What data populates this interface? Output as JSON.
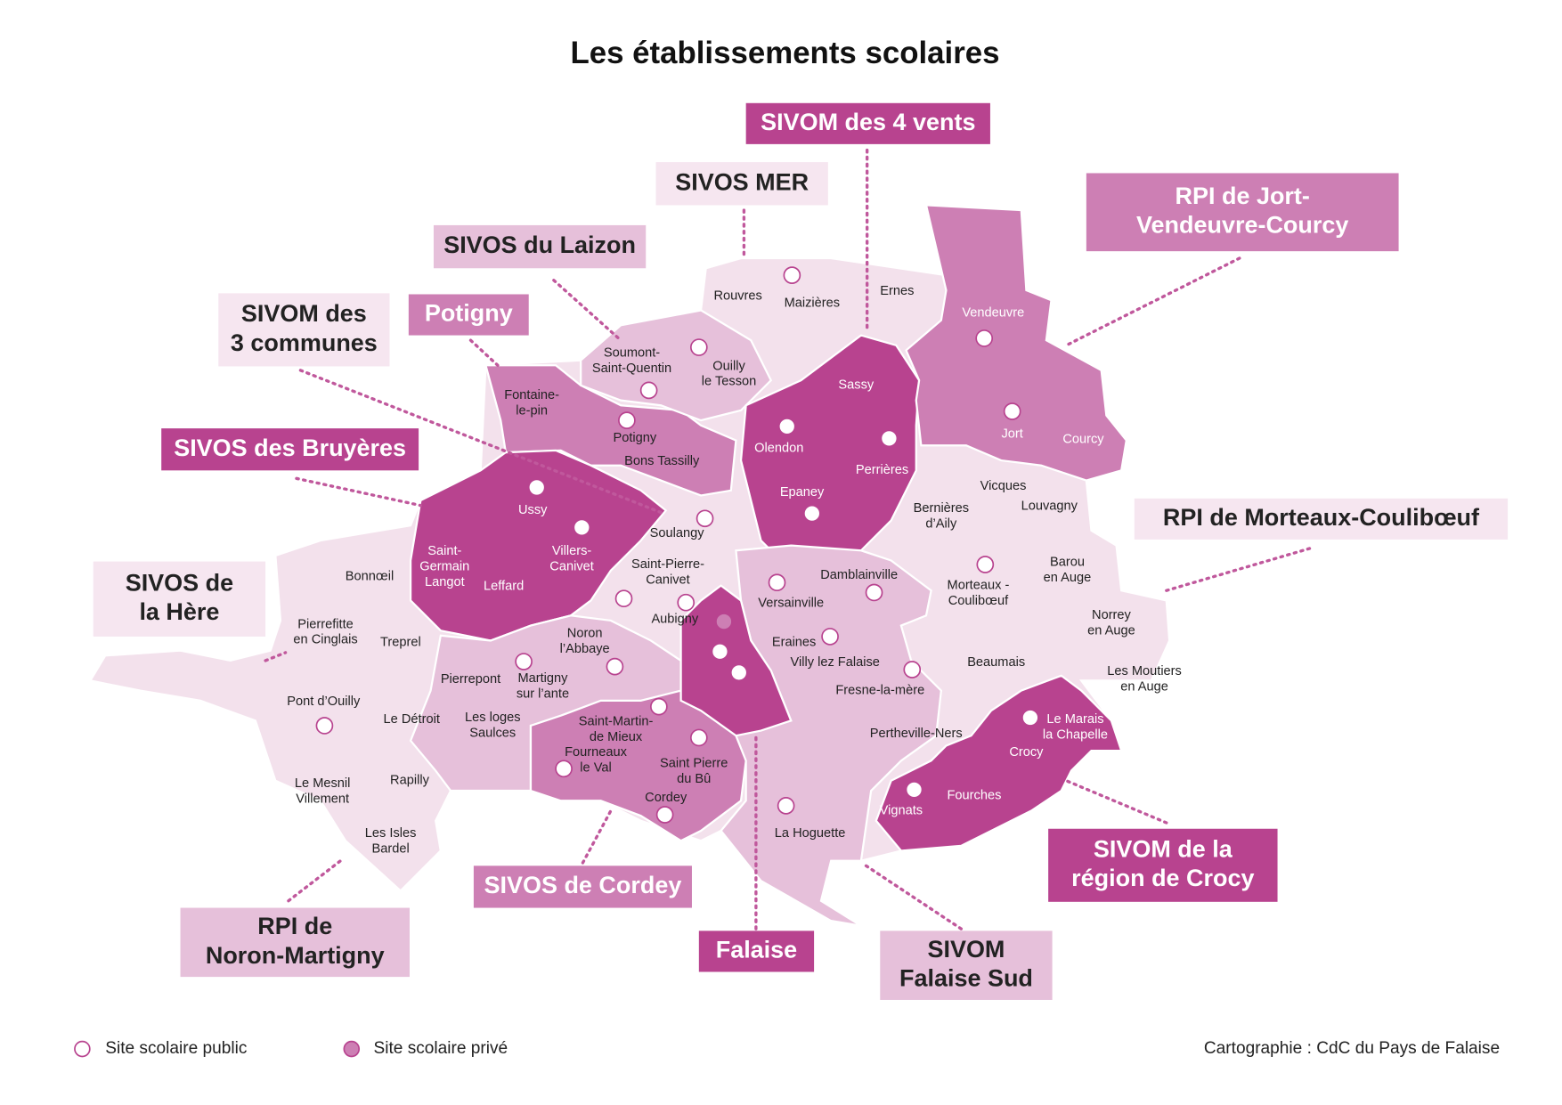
{
  "title": "Les établissements scolaires",
  "groups": [
    {
      "lines": [
        "SIVOM des 4 vents"
      ]
    },
    {
      "lines": [
        "SIVOS MER"
      ]
    },
    {
      "lines": [
        "RPI de Jort-",
        "Vendeuvre-Courcy"
      ]
    },
    {
      "lines": [
        "SIVOS du Laizon"
      ]
    },
    {
      "lines": [
        "SIVOM des",
        "3 communes"
      ]
    },
    {
      "lines": [
        "Potigny"
      ]
    },
    {
      "lines": [
        "SIVOS des Bruyères"
      ]
    },
    {
      "lines": [
        "RPI de Morteaux-Coulibœuf"
      ]
    },
    {
      "lines": [
        "SIVOS de",
        "la Hère"
      ]
    },
    {
      "lines": [
        "SIVOM de la",
        "région de Crocy"
      ]
    },
    {
      "lines": [
        "SIVOS de Cordey"
      ]
    },
    {
      "lines": [
        "RPI de",
        "Noron-Martigny"
      ]
    },
    {
      "lines": [
        "Falaise"
      ]
    },
    {
      "lines": [
        "SIVOM",
        "Falaise Sud"
      ]
    }
  ],
  "communes": [
    {
      "lines": [
        "Rouvres"
      ]
    },
    {
      "lines": [
        "Maizières"
      ]
    },
    {
      "lines": [
        "Ernes"
      ]
    },
    {
      "lines": [
        "Vendeuvre"
      ]
    },
    {
      "lines": [
        "Soumont-",
        "Saint-Quentin"
      ]
    },
    {
      "lines": [
        "Ouilly",
        "le Tesson"
      ]
    },
    {
      "lines": [
        "Fontaine-",
        "le-pin"
      ]
    },
    {
      "lines": [
        "Sassy"
      ]
    },
    {
      "lines": [
        "Potigny"
      ]
    },
    {
      "lines": [
        "Bons Tassilly"
      ]
    },
    {
      "lines": [
        "Olendon"
      ]
    },
    {
      "lines": [
        "Perrières"
      ]
    },
    {
      "lines": [
        "Jort"
      ]
    },
    {
      "lines": [
        "Courcy"
      ]
    },
    {
      "lines": [
        "Ussy"
      ]
    },
    {
      "lines": [
        "Epaney"
      ]
    },
    {
      "lines": [
        "Bernières",
        "d’Aily"
      ]
    },
    {
      "lines": [
        "Vicques"
      ]
    },
    {
      "lines": [
        "Louvagny"
      ]
    },
    {
      "lines": [
        "Soulangy"
      ]
    },
    {
      "lines": [
        "Villers-",
        "Canivet"
      ]
    },
    {
      "lines": [
        "Saint-",
        "Germain",
        "Langot"
      ]
    },
    {
      "lines": [
        "Leffard"
      ]
    },
    {
      "lines": [
        "Saint-Pierre-",
        "Canivet"
      ]
    },
    {
      "lines": [
        "Bonnœil"
      ]
    },
    {
      "lines": [
        "Damblainville"
      ]
    },
    {
      "lines": [
        "Versainville"
      ]
    },
    {
      "lines": [
        "Morteaux -",
        "Coulibœuf"
      ]
    },
    {
      "lines": [
        "Barou",
        "en Auge"
      ]
    },
    {
      "lines": [
        "Aubigny"
      ]
    },
    {
      "lines": [
        "Norrey",
        "en Auge"
      ]
    },
    {
      "lines": [
        "Pierrefitte",
        "en Cinglais"
      ]
    },
    {
      "lines": [
        "Treprel"
      ]
    },
    {
      "lines": [
        "Noron",
        "l’Abbaye"
      ]
    },
    {
      "lines": [
        "Eraines"
      ]
    },
    {
      "lines": [
        "Beaumais"
      ]
    },
    {
      "lines": [
        "Villy lez Falaise"
      ]
    },
    {
      "lines": [
        "Pierrepont"
      ]
    },
    {
      "lines": [
        "Martigny",
        "sur l’ante"
      ]
    },
    {
      "lines": [
        "Fresne-la-mère"
      ]
    },
    {
      "lines": [
        "Les Moutiers",
        "en Auge"
      ]
    },
    {
      "lines": [
        "Pont d’Ouilly"
      ]
    },
    {
      "lines": [
        "Le Détroit"
      ]
    },
    {
      "lines": [
        "Les loges",
        "Saulces"
      ]
    },
    {
      "lines": [
        "Saint-Martin-",
        "de Mieux"
      ]
    },
    {
      "lines": [
        "Le Marais",
        "la Chapelle"
      ]
    },
    {
      "lines": [
        "Pertheville-Ners"
      ]
    },
    {
      "lines": [
        "Crocy"
      ]
    },
    {
      "lines": [
        "Fourneaux",
        "le Val"
      ]
    },
    {
      "lines": [
        "Saint Pierre",
        "du Bû"
      ]
    },
    {
      "lines": [
        "Rapilly"
      ]
    },
    {
      "lines": [
        "Le Mesnil",
        "Villement"
      ]
    },
    {
      "lines": [
        "Fourches"
      ]
    },
    {
      "lines": [
        "Cordey"
      ]
    },
    {
      "lines": [
        "Vignats"
      ]
    },
    {
      "lines": [
        "Les Isles",
        "Bardel"
      ]
    },
    {
      "lines": [
        "La Hoguette"
      ]
    }
  ],
  "legend": [
    "Site scolaire public",
    "Site scolaire privé"
  ],
  "credit": "Cartographie : CdC du Pays de Falaise"
}
